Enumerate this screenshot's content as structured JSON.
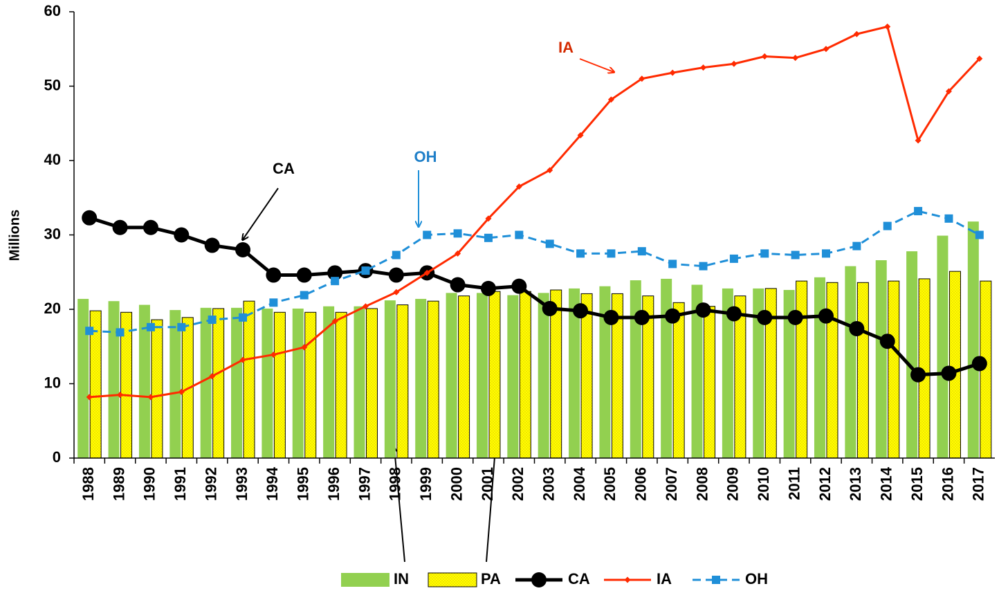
{
  "chart_data": {
    "type": "combo",
    "y_label": "Millions",
    "categories": [
      "1988",
      "1989",
      "1990",
      "1991",
      "1992",
      "1993",
      "1994",
      "1995",
      "1996",
      "1997",
      "1998",
      "1999",
      "2000",
      "2001",
      "2002",
      "2003",
      "2004",
      "2005",
      "2006",
      "2007",
      "2008",
      "2009",
      "2010",
      "2011",
      "2012",
      "2013",
      "2014",
      "2015",
      "2016",
      "2017"
    ],
    "ylim": [
      0,
      60
    ],
    "yticks": [
      0,
      10,
      20,
      30,
      40,
      50,
      60
    ],
    "grid": false,
    "legend": "bottom",
    "series": [
      {
        "name": "IN",
        "type": "bar",
        "color": "#92d050",
        "values": [
          21.4,
          21.1,
          20.6,
          19.9,
          20.2,
          20.2,
          20.1,
          20.1,
          20.4,
          20.4,
          21.2,
          21.4,
          22.2,
          22.2,
          21.9,
          22.2,
          22.8,
          23.1,
          23.9,
          24.1,
          23.3,
          22.8,
          22.8,
          22.6,
          24.3,
          25.8,
          26.6,
          27.8,
          29.9,
          31.8
        ]
      },
      {
        "name": "PA",
        "type": "bar",
        "color": "#ffff00",
        "values": [
          19.8,
          19.6,
          18.6,
          18.9,
          20.1,
          21.1,
          19.6,
          19.6,
          19.6,
          20.1,
          20.6,
          21.1,
          21.8,
          22.4,
          22.4,
          22.6,
          22.1,
          22.1,
          21.8,
          20.9,
          20.4,
          21.8,
          22.8,
          23.8,
          23.6,
          23.6,
          23.8,
          24.1,
          25.1,
          23.8
        ]
      },
      {
        "name": "CA",
        "type": "line",
        "color": "#000000",
        "marker": "circle",
        "values": [
          32.3,
          31.0,
          31.0,
          30.0,
          28.6,
          28.0,
          24.6,
          24.6,
          24.9,
          25.2,
          24.6,
          24.9,
          23.3,
          22.8,
          23.1,
          20.1,
          19.8,
          18.9,
          18.9,
          19.1,
          19.9,
          19.4,
          18.9,
          18.9,
          19.1,
          17.4,
          15.7,
          11.2,
          11.4,
          12.7
        ]
      },
      {
        "name": "IA",
        "type": "line",
        "color": "#ff2a00",
        "marker": "diamond",
        "values": [
          8.2,
          8.5,
          8.2,
          8.9,
          11.0,
          13.2,
          13.9,
          14.9,
          18.4,
          20.4,
          22.3,
          24.9,
          27.5,
          32.2,
          36.5,
          38.7,
          43.4,
          48.2,
          51.0,
          51.8,
          52.5,
          53.0,
          54.0,
          53.8,
          55.0,
          57.0,
          58.0,
          42.7,
          49.3,
          53.7
        ]
      },
      {
        "name": "OH",
        "type": "line",
        "color": "#1f8fd8",
        "marker": "square",
        "dashed": true,
        "values": [
          17.1,
          16.9,
          17.6,
          17.6,
          18.6,
          18.9,
          20.9,
          21.9,
          23.8,
          25.2,
          27.3,
          30.0,
          30.2,
          29.6,
          30.0,
          28.8,
          27.5,
          27.5,
          27.8,
          26.1,
          25.8,
          26.8,
          27.5,
          27.3,
          27.5,
          28.5,
          31.2,
          33.2,
          32.2,
          30.0
        ]
      }
    ],
    "annotations": [
      {
        "text": "IA",
        "color": "#d42a00"
      },
      {
        "text": "CA",
        "color": "#000000"
      },
      {
        "text": "OH",
        "color": "#1f7fc8"
      }
    ]
  }
}
